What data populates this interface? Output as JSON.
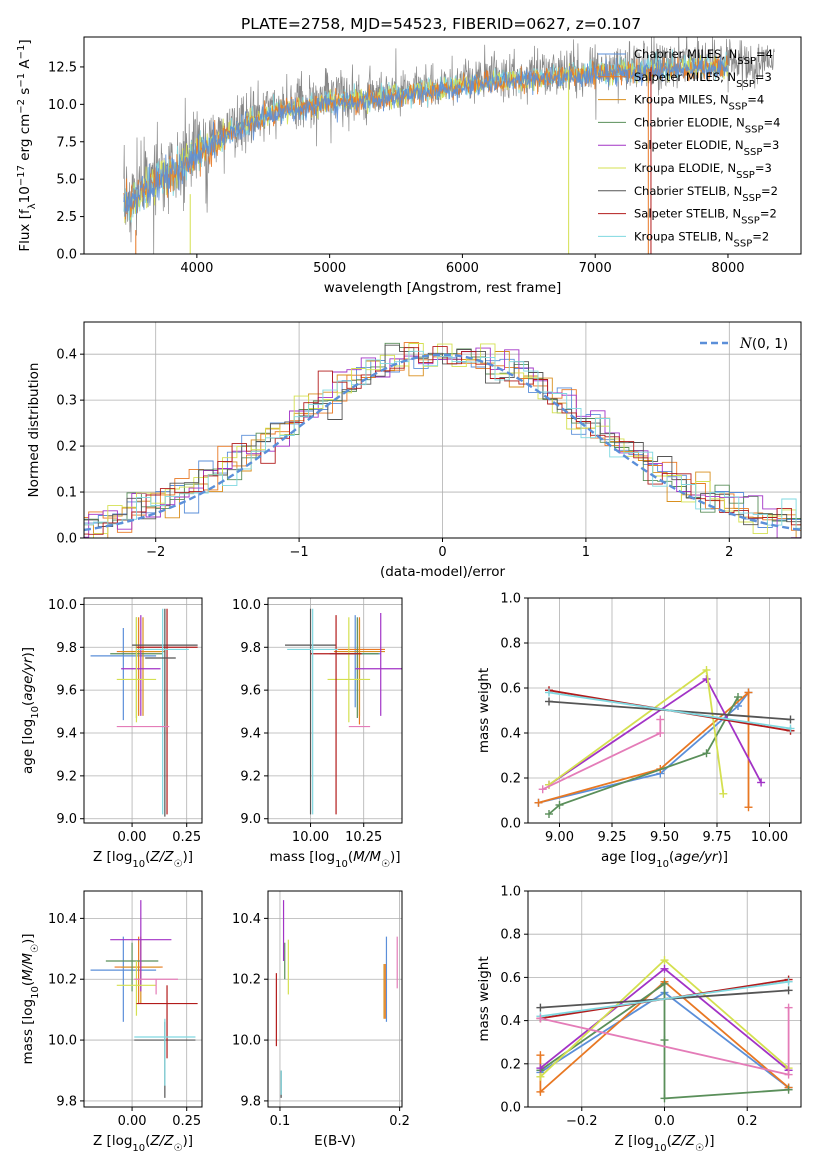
{
  "figure_title": "PLATE=2758, MJD=54523, FIBERID=0627, z=0.107",
  "colors": {
    "Chabrier MILES": "#5b8fd9",
    "Salpeter MILES": "#e87823",
    "Kroupa MILES": "#d98f1e",
    "Chabrier ELODIE": "#5a8f5a",
    "Salpeter ELODIE": "#a233c6",
    "Kroupa ELODIE": "#d4e050",
    "Chabrier STELIB": "#555555",
    "Salpeter STELIB": "#b21b1b",
    "Kroupa STELIB": "#7fd8e0",
    "pink": "#e47cb8",
    "gray": "#888888",
    "normal": "#5b8fd9"
  },
  "chart_data": [
    {
      "id": "spectrum",
      "type": "line",
      "title": "PLATE=2758, MJD=54523, FIBERID=0627, z=0.107",
      "xlabel": "wavelength [Angstrom, rest frame]",
      "ylabel": "Flux [f_λ 10^-17 erg cm^-2 s^-1 A^-1]",
      "xlim": [
        3150,
        8550
      ],
      "ylim": [
        0,
        14.5
      ],
      "xticks": [
        4000,
        5000,
        6000,
        7000,
        8000
      ],
      "yticks": [
        0.0,
        2.5,
        5.0,
        7.5,
        10.0,
        12.5
      ],
      "ytick_labels": [
        "0.0",
        "2.5",
        "5.0",
        "7.5",
        "10.0",
        "12.5"
      ],
      "legend": [
        {
          "name": "Chabrier MILES",
          "sub": "SSP",
          "n": 4
        },
        {
          "name": "Salpeter MILES",
          "sub": "SSP",
          "n": 3
        },
        {
          "name": "Kroupa MILES",
          "sub": "SSP",
          "n": 4
        },
        {
          "name": "Chabrier ELODIE",
          "sub": "SSP",
          "n": 4
        },
        {
          "name": "Salpeter ELODIE",
          "sub": "SSP",
          "n": 3
        },
        {
          "name": "Kroupa ELODIE",
          "sub": "SSP",
          "n": 3
        },
        {
          "name": "Chabrier STELIB",
          "sub": "SSP",
          "n": 2
        },
        {
          "name": "Salpeter STELIB",
          "sub": "SSP",
          "n": 2
        },
        {
          "name": "Kroupa STELIB",
          "sub": "SSP",
          "n": 2
        }
      ],
      "continuum_knots": [
        [
          3450,
          3.4
        ],
        [
          3650,
          4.8
        ],
        [
          3850,
          5.8
        ],
        [
          4000,
          7.0
        ],
        [
          4300,
          8.6
        ],
        [
          4600,
          9.8
        ],
        [
          5000,
          10.4
        ],
        [
          5500,
          10.8
        ],
        [
          6000,
          11.5
        ],
        [
          6500,
          12.0
        ],
        [
          7000,
          12.3
        ],
        [
          7500,
          12.6
        ],
        [
          8000,
          12.8
        ],
        [
          8300,
          12.8
        ]
      ],
      "model_range": [
        3450,
        8000
      ],
      "data_range": [
        3450,
        8350
      ]
    },
    {
      "id": "residuals",
      "type": "histogram",
      "xlabel": "(data-model)/error",
      "ylabel": "Normed distribution",
      "xlim": [
        -2.5,
        2.5
      ],
      "ylim": [
        0,
        0.47
      ],
      "xticks": [
        -2,
        -1,
        0,
        1,
        2
      ],
      "xtick_labels": [
        "−2",
        "−1",
        "0",
        "1",
        "2"
      ],
      "yticks": [
        0.0,
        0.1,
        0.2,
        0.3,
        0.4
      ],
      "ytick_labels": [
        "0.0",
        "0.1",
        "0.2",
        "0.3",
        "0.4"
      ],
      "grid": true,
      "legend_label": "N(0,1)",
      "bin_width": 0.1
    },
    {
      "id": "age_vs_Z",
      "type": "errorbar",
      "xlabel": "Z [log10(Z/Z☉)]",
      "ylabel": "age [log10(age/yr)]",
      "xlim": [
        -0.22,
        0.32
      ],
      "ylim": [
        8.98,
        10.03
      ],
      "xticks": [
        0.0,
        0.25
      ],
      "xtick_labels": [
        "0.00",
        "0.25"
      ],
      "yticks": [
        9.0,
        9.2,
        9.4,
        9.6,
        9.8,
        10.0
      ],
      "ytick_labels": [
        "9.0",
        "9.2",
        "9.4",
        "9.6",
        "9.8",
        "10.0"
      ],
      "grid": true,
      "points": [
        {
          "model": "Chabrier MILES",
          "x": -0.04,
          "xerr": 0.15,
          "y": 9.76,
          "yerr": [
            0.3,
            0.13
          ]
        },
        {
          "model": "Salpeter MILES",
          "x": 0.03,
          "xerr": 0.1,
          "y": 9.78,
          "yerr": [
            0.3,
            0.16
          ]
        },
        {
          "model": "Kroupa MILES",
          "x": 0.05,
          "xerr": 0.1,
          "y": 9.78,
          "yerr": [
            0.3,
            0.16
          ]
        },
        {
          "model": "Chabrier ELODIE",
          "x": 0.02,
          "xerr": 0.12,
          "y": 9.77,
          "yerr": [
            0.3,
            0.17
          ]
        },
        {
          "model": "Salpeter ELODIE",
          "x": 0.04,
          "xerr": 0.09,
          "y": 9.7,
          "yerr": [
            0.22,
            0.25
          ]
        },
        {
          "model": "Kroupa ELODIE",
          "x": 0.02,
          "xerr": 0.09,
          "y": 9.65,
          "yerr": [
            0.2,
            0.29
          ]
        },
        {
          "model": "Chabrier STELIB",
          "x": 0.15,
          "xerr": 0.15,
          "y": 9.81,
          "yerr": [
            0.8,
            0.17
          ]
        },
        {
          "model": "Salpeter STELIB",
          "x": 0.16,
          "xerr": 0.14,
          "y": 9.8,
          "yerr": [
            0.78,
            0.18
          ]
        },
        {
          "model": "Kroupa STELIB",
          "x": 0.14,
          "xerr": 0.12,
          "y": 9.79,
          "yerr": [
            0.77,
            0.19
          ]
        },
        {
          "model": "pink",
          "x": 0.05,
          "xerr": 0.12,
          "y": 9.43,
          "yerr": [
            0.0,
            0.0
          ]
        },
        {
          "model": "Chabrier STELIB",
          "x": 0.13,
          "xerr": 0.07,
          "y": 9.75,
          "yerr": [
            0.0,
            0.0
          ]
        }
      ]
    },
    {
      "id": "age_vs_mass",
      "type": "errorbar",
      "xlabel": "mass [log10(M/M☉)]",
      "ylabel": "",
      "xlim": [
        9.8,
        10.43
      ],
      "ylim": [
        8.98,
        10.03
      ],
      "xticks": [
        10.0,
        10.25
      ],
      "xtick_labels": [
        "10.00",
        "10.25"
      ],
      "yticks": [
        9.0,
        9.2,
        9.4,
        9.6,
        9.8,
        10.0
      ],
      "ytick_labels": [
        "9.0",
        "9.2",
        "9.4",
        "9.6",
        "9.8",
        "10.0"
      ],
      "grid": true,
      "points": [
        {
          "model": "Chabrier MILES",
          "x": 10.21,
          "xerr": 0.12,
          "y": 9.77,
          "yerr": [
            0.25,
            0.18
          ]
        },
        {
          "model": "Salpeter MILES",
          "x": 10.23,
          "xerr": 0.12,
          "y": 9.79,
          "yerr": [
            0.35,
            0.15
          ]
        },
        {
          "model": "Kroupa MILES",
          "x": 10.23,
          "xerr": 0.12,
          "y": 9.78,
          "yerr": [
            0.3,
            0.15
          ]
        },
        {
          "model": "Chabrier ELODIE",
          "x": 10.22,
          "xerr": 0.1,
          "y": 9.77,
          "yerr": [
            0.3,
            0.17
          ]
        },
        {
          "model": "Salpeter ELODIE",
          "x": 10.33,
          "xerr": 0.12,
          "y": 9.7,
          "yerr": [
            0.22,
            0.26
          ]
        },
        {
          "model": "Kroupa ELODIE",
          "x": 10.18,
          "xerr": 0.1,
          "y": 9.65,
          "yerr": [
            0.2,
            0.29
          ]
        },
        {
          "model": "Chabrier STELIB",
          "x": 10.0,
          "xerr": 0.12,
          "y": 9.81,
          "yerr": [
            0.79,
            0.17
          ]
        },
        {
          "model": "Salpeter STELIB",
          "x": 10.12,
          "xerr": 0.12,
          "y": 9.77,
          "yerr": [
            0.75,
            0.18
          ]
        },
        {
          "model": "Kroupa STELIB",
          "x": 10.01,
          "xerr": 0.12,
          "y": 9.79,
          "yerr": [
            0.77,
            0.19
          ]
        },
        {
          "model": "pink",
          "x": 10.23,
          "xerr": 0.05,
          "y": 9.43,
          "yerr": [
            0.0,
            0.0
          ]
        }
      ]
    },
    {
      "id": "weight_vs_age",
      "type": "line",
      "xlabel": "age [log10(age/yr)]",
      "ylabel": "mass weight",
      "xlim": [
        8.85,
        10.15
      ],
      "ylim": [
        0.0,
        1.0
      ],
      "xticks": [
        9.0,
        9.25,
        9.5,
        9.75,
        10.0
      ],
      "xtick_labels": [
        "9.00",
        "9.25",
        "9.50",
        "9.75",
        "10.00"
      ],
      "yticks": [
        0.0,
        0.2,
        0.4,
        0.6,
        0.8,
        1.0
      ],
      "ytick_labels": [
        "0.0",
        "0.2",
        "0.4",
        "0.6",
        "0.8",
        "1.0"
      ],
      "grid": true,
      "series": [
        {
          "model": "Chabrier MILES",
          "x": [
            8.9,
            9.48,
            9.85,
            9.9
          ],
          "y": [
            0.09,
            0.22,
            0.52,
            0.58
          ]
        },
        {
          "model": "Salpeter MILES",
          "x": [
            8.9,
            9.48,
            9.9,
            9.9
          ],
          "y": [
            0.09,
            0.24,
            0.58,
            0.07
          ]
        },
        {
          "model": "Chabrier ELODIE",
          "x": [
            8.95,
            9.0,
            9.7,
            9.85
          ],
          "y": [
            0.04,
            0.08,
            0.31,
            0.56
          ]
        },
        {
          "model": "Salpeter ELODIE",
          "x": [
            8.95,
            9.7,
            9.96
          ],
          "y": [
            0.17,
            0.64,
            0.18
          ]
        },
        {
          "model": "Kroupa ELODIE",
          "x": [
            8.95,
            9.7,
            9.78
          ],
          "y": [
            0.17,
            0.68,
            0.13
          ]
        },
        {
          "model": "Chabrier STELIB",
          "x": [
            8.95,
            10.1
          ],
          "y": [
            0.54,
            0.46
          ]
        },
        {
          "model": "Salpeter STELIB",
          "x": [
            8.95,
            10.1
          ],
          "y": [
            0.59,
            0.41
          ]
        },
        {
          "model": "Kroupa STELIB",
          "x": [
            8.95,
            10.1
          ],
          "y": [
            0.58,
            0.42
          ]
        },
        {
          "model": "pink",
          "x": [
            8.92,
            9.48,
            9.48
          ],
          "y": [
            0.15,
            0.4,
            0.46
          ]
        }
      ]
    },
    {
      "id": "mass_vs_Z",
      "type": "errorbar",
      "xlabel": "Z [log10(Z/Z☉)]",
      "ylabel": "mass [log10(M/M☉)]",
      "xlim": [
        -0.22,
        0.32
      ],
      "ylim": [
        9.78,
        10.49
      ],
      "xticks": [
        0.0,
        0.25
      ],
      "xtick_labels": [
        "0.00",
        "0.25"
      ],
      "yticks": [
        9.8,
        10.0,
        10.2,
        10.4
      ],
      "ytick_labels": [
        "9.8",
        "10.0",
        "10.2",
        "10.4"
      ],
      "grid": true,
      "points": [
        {
          "model": "Chabrier MILES",
          "x": -0.04,
          "xerr": 0.15,
          "y": 10.23,
          "yerr": [
            0.17,
            0.11
          ]
        },
        {
          "model": "Salpeter MILES",
          "x": 0.03,
          "xerr": 0.11,
          "y": 10.24,
          "yerr": [
            0.12,
            0.1
          ]
        },
        {
          "model": "Kroupa MILES",
          "x": 0.04,
          "xerr": 0.09,
          "y": 10.24,
          "yerr": [
            0.12,
            0.1
          ]
        },
        {
          "model": "Chabrier ELODIE",
          "x": 0.0,
          "xerr": 0.12,
          "y": 10.26,
          "yerr": [
            0.1,
            0.06
          ]
        },
        {
          "model": "Salpeter ELODIE",
          "x": 0.04,
          "xerr": 0.14,
          "y": 10.33,
          "yerr": [
            0.17,
            0.13
          ]
        },
        {
          "model": "Kroupa ELODIE",
          "x": 0.02,
          "xerr": 0.09,
          "y": 10.18,
          "yerr": [
            0.1,
            0.08
          ]
        },
        {
          "model": "Chabrier STELIB",
          "x": 0.15,
          "xerr": 0.14,
          "y": 10.0,
          "yerr": [
            0.19,
            0.06
          ]
        },
        {
          "model": "Salpeter STELIB",
          "x": 0.16,
          "xerr": 0.14,
          "y": 10.12,
          "yerr": [
            0.18,
            0.06
          ]
        },
        {
          "model": "Kroupa STELIB",
          "x": 0.15,
          "xerr": 0.14,
          "y": 10.01,
          "yerr": [
            0.16,
            0.06
          ]
        },
        {
          "model": "pink",
          "x": 0.11,
          "xerr": 0.1,
          "y": 10.2,
          "yerr": [
            0.05,
            0.0
          ]
        },
        {
          "model": "gray",
          "x": 0.1,
          "xerr": 0.0,
          "y": 9.98,
          "yerr": [
            0.0,
            0.0
          ]
        }
      ]
    },
    {
      "id": "mass_vs_ebv",
      "type": "errorbar",
      "xlabel": "E(B-V)",
      "ylabel": "",
      "xlim": [
        0.09,
        0.202
      ],
      "ylim": [
        9.78,
        10.49
      ],
      "xticks": [
        0.1,
        0.2
      ],
      "xtick_labels": [
        "0.1",
        "0.2"
      ],
      "yticks": [
        9.8,
        10.0,
        10.2,
        10.4
      ],
      "ytick_labels": [
        "9.8",
        "10.0",
        "10.2",
        "10.4"
      ],
      "grid": true,
      "points": [
        {
          "model": "Chabrier MILES",
          "x": 0.189,
          "xerr": 0.0,
          "y": 10.23,
          "yerr": [
            0.17,
            0.11
          ]
        },
        {
          "model": "Salpeter MILES",
          "x": 0.188,
          "xerr": 0.0,
          "y": 10.18,
          "yerr": [
            0.11,
            0.07
          ]
        },
        {
          "model": "Kroupa MILES",
          "x": 0.187,
          "xerr": 0.0,
          "y": 10.18,
          "yerr": [
            0.11,
            0.07
          ]
        },
        {
          "model": "Chabrier ELODIE",
          "x": 0.104,
          "xerr": 0.0,
          "y": 10.26,
          "yerr": [
            0.06,
            0.06
          ]
        },
        {
          "model": "Salpeter ELODIE",
          "x": 0.103,
          "xerr": 0.0,
          "y": 10.38,
          "yerr": [
            0.12,
            0.08
          ]
        },
        {
          "model": "Kroupa ELODIE",
          "x": 0.107,
          "xerr": 0.0,
          "y": 10.25,
          "yerr": [
            0.1,
            0.08
          ]
        },
        {
          "model": "Chabrier STELIB",
          "x": 0.101,
          "xerr": 0.0,
          "y": 9.85,
          "yerr": [
            0.04,
            0.05
          ]
        },
        {
          "model": "Salpeter STELIB",
          "x": 0.097,
          "xerr": 0.0,
          "y": 10.1,
          "yerr": [
            0.12,
            0.12
          ]
        },
        {
          "model": "Kroupa STELIB",
          "x": 0.101,
          "xerr": 0.0,
          "y": 9.86,
          "yerr": [
            0.04,
            0.04
          ]
        },
        {
          "model": "pink",
          "x": 0.198,
          "xerr": 0.0,
          "y": 10.25,
          "yerr": [
            0.08,
            0.09
          ]
        }
      ]
    },
    {
      "id": "weight_vs_Z",
      "type": "line",
      "xlabel": "Z [log10(Z/Z☉)]",
      "ylabel": "mass weight",
      "xlim": [
        -0.33,
        0.33
      ],
      "ylim": [
        0.0,
        1.0
      ],
      "xticks": [
        -0.2,
        0.0,
        0.2
      ],
      "xtick_labels": [
        "−0.2",
        "0.0",
        "0.2"
      ],
      "yticks": [
        0.0,
        0.2,
        0.4,
        0.6,
        0.8,
        1.0
      ],
      "ytick_labels": [
        "0.0",
        "0.2",
        "0.4",
        "0.6",
        "0.8",
        "1.0"
      ],
      "grid": true,
      "series": [
        {
          "model": "Chabrier MILES",
          "x": [
            -0.3,
            0.0,
            0.3
          ],
          "y": [
            0.16,
            0.53,
            0.09
          ]
        },
        {
          "model": "Salpeter MILES",
          "x": [
            -0.3,
            -0.3,
            0.0,
            0.3
          ],
          "y": [
            0.24,
            0.07,
            0.58,
            0.09
          ]
        },
        {
          "model": "Chabrier ELODIE",
          "x": [
            -0.3,
            0.0,
            0.0,
            0.0,
            0.3
          ],
          "y": [
            0.17,
            0.57,
            0.31,
            0.04,
            0.08
          ]
        },
        {
          "model": "Salpeter ELODIE",
          "x": [
            -0.3,
            0.0,
            0.3
          ],
          "y": [
            0.18,
            0.64,
            0.17
          ]
        },
        {
          "model": "Kroupa ELODIE",
          "x": [
            -0.3,
            0.0,
            0.3
          ],
          "y": [
            0.14,
            0.68,
            0.18
          ]
        },
        {
          "model": "Chabrier STELIB",
          "x": [
            -0.3,
            0.3
          ],
          "y": [
            0.46,
            0.54
          ]
        },
        {
          "model": "Salpeter STELIB",
          "x": [
            -0.3,
            0.3
          ],
          "y": [
            0.41,
            0.59
          ]
        },
        {
          "model": "Kroupa STELIB",
          "x": [
            -0.3,
            0.3
          ],
          "y": [
            0.42,
            0.58
          ]
        },
        {
          "model": "pink",
          "x": [
            -0.3,
            0.3,
            0.3
          ],
          "y": [
            0.41,
            0.15,
            0.46
          ]
        }
      ]
    }
  ]
}
